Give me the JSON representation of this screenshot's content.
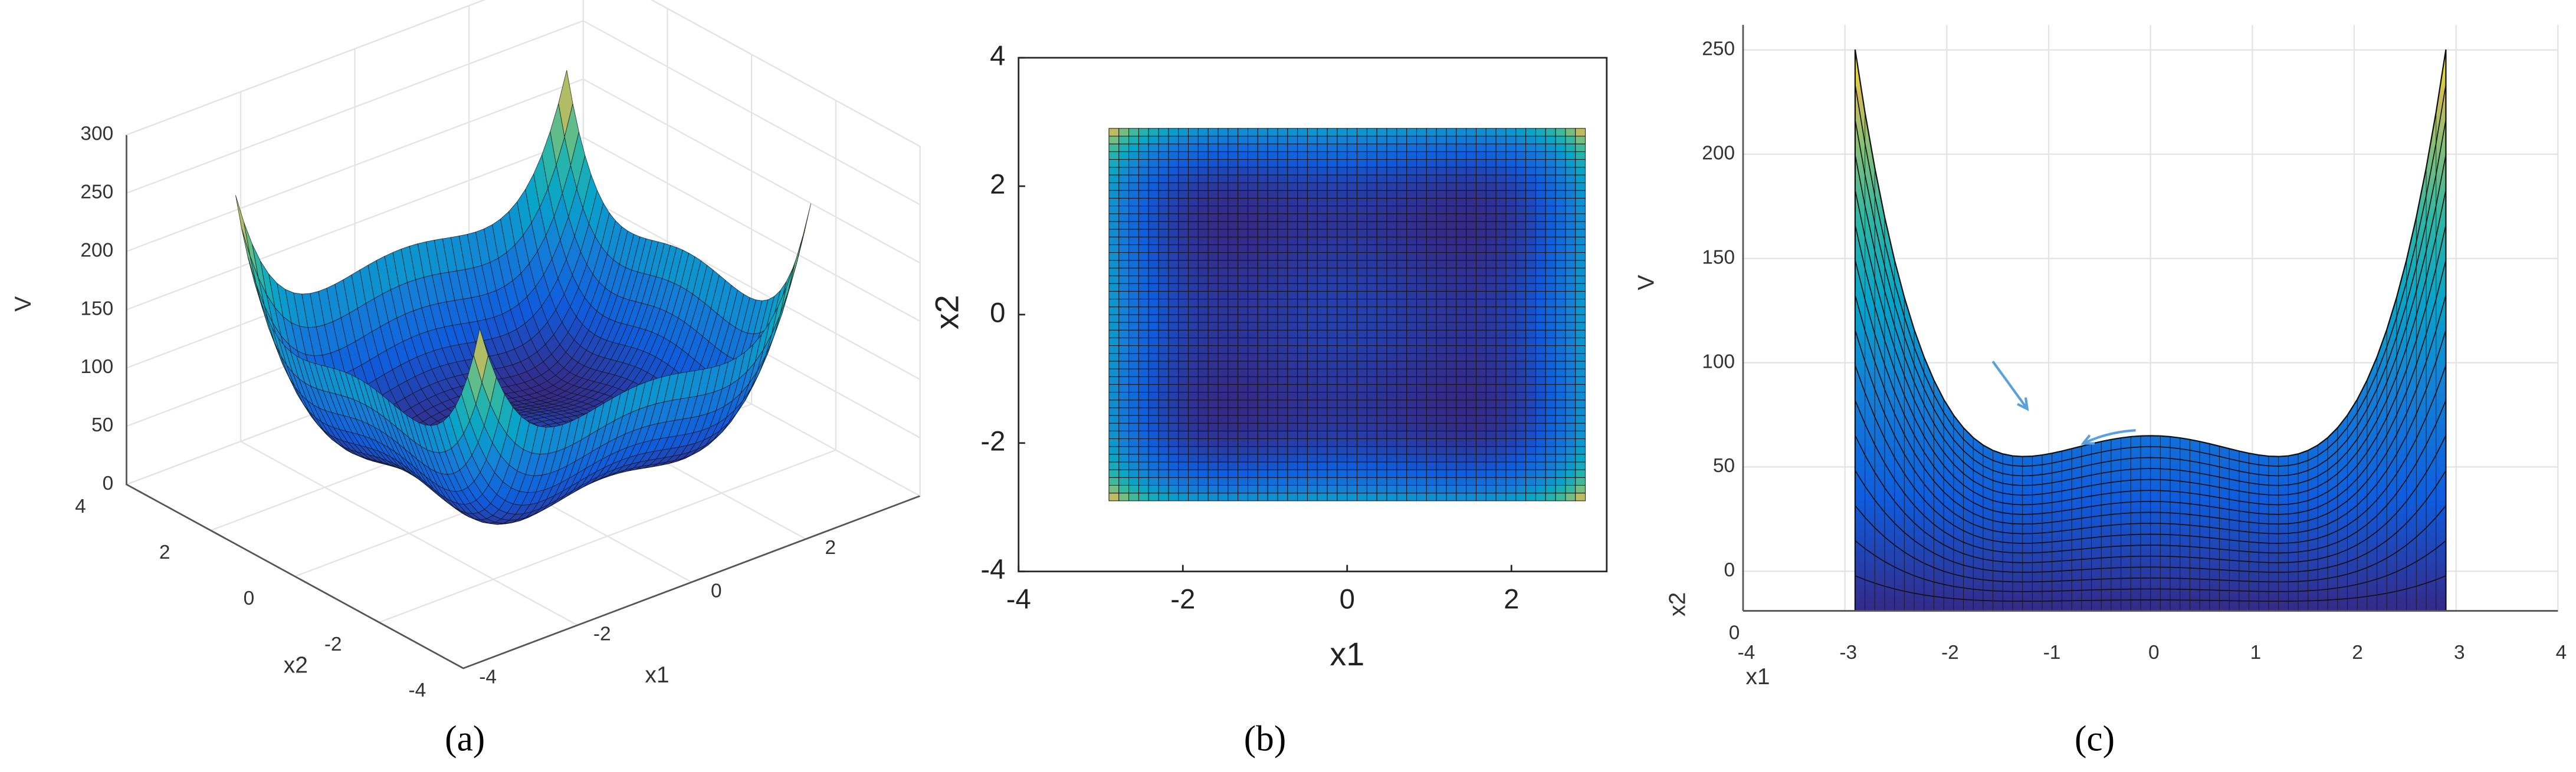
{
  "chart_data": [
    {
      "type": "surface3d",
      "label": "(a)",
      "xlabel": "x1",
      "ylabel": "x2",
      "zlabel": "V",
      "xlim": [
        -4,
        4
      ],
      "xticks": [
        -4,
        -2,
        0,
        2
      ],
      "ylim": [
        -4,
        4
      ],
      "yticks": [
        -4,
        -2,
        0,
        2,
        4
      ],
      "zlim": [
        0,
        300
      ],
      "zticks": [
        0,
        50,
        100,
        150,
        200,
        250,
        300
      ],
      "surface_range": [
        -2.9,
        2.9
      ],
      "grid": true
    },
    {
      "type": "heatmap",
      "label": "(b)",
      "xlabel": "x1",
      "ylabel": "x2",
      "xlim": [
        -4,
        3.16
      ],
      "xticks": [
        -4,
        -2,
        0,
        2
      ],
      "ylim": [
        -4,
        4
      ],
      "yticks": [
        -4,
        -2,
        0,
        2,
        4
      ],
      "surface_range": [
        -2.9,
        2.9
      ],
      "grid": false
    },
    {
      "type": "surface-side",
      "label": "(c)",
      "xlabel": "x1",
      "ylabel": "x2",
      "zlabel": "V",
      "xlim": [
        -4,
        4
      ],
      "xticks": [
        -4,
        -3,
        -2,
        -1,
        0,
        1,
        2,
        3,
        4
      ],
      "yticks": [
        0
      ],
      "zlim": [
        -19,
        262
      ],
      "zticks": [
        0,
        50,
        100,
        150,
        200,
        250
      ],
      "surface_range": [
        -2.9,
        2.9
      ],
      "grid": true
    }
  ]
}
